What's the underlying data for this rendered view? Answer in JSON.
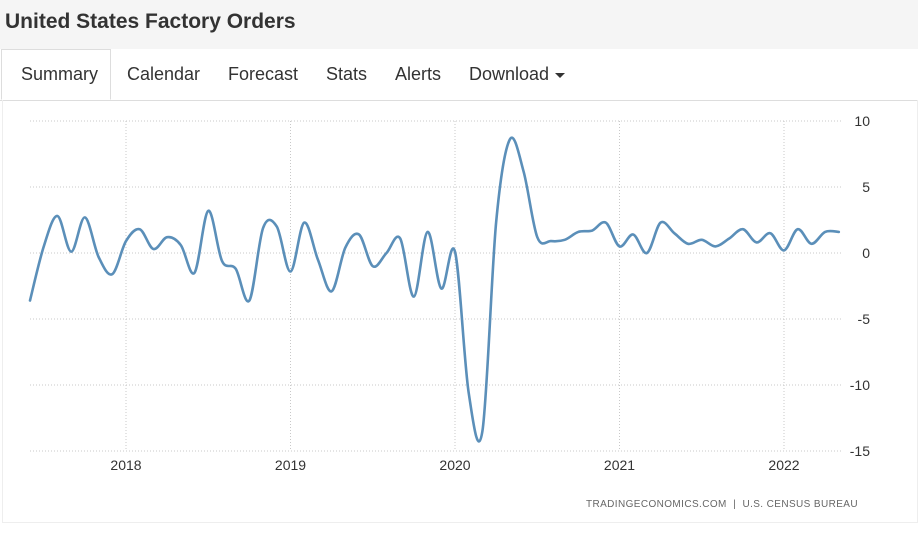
{
  "page": {
    "title": "United States Factory Orders"
  },
  "tabs": [
    {
      "label": "Summary",
      "active": true
    },
    {
      "label": "Calendar",
      "active": false
    },
    {
      "label": "Forecast",
      "active": false
    },
    {
      "label": "Stats",
      "active": false
    },
    {
      "label": "Alerts",
      "active": false
    },
    {
      "label": "Download",
      "active": false
    }
  ],
  "source_credit": "TRADINGECONOMICS.COM  |  U.S. CENSUS BUREAU",
  "colors": {
    "line": "#5b8fb9",
    "grid": "#c8c8c8",
    "text": "#333333"
  },
  "chart_data": {
    "type": "line",
    "title": "",
    "xlabel": "",
    "ylabel": "",
    "x_ticks": [
      "2018",
      "2019",
      "2020",
      "2021",
      "2022"
    ],
    "y_ticks": [
      10,
      5,
      0,
      -5,
      -10,
      -15
    ],
    "ylim": [
      -15,
      10
    ],
    "grid": true,
    "y_axis_side": "right",
    "series": [
      {
        "x": [
          "2017-06",
          "2017-07",
          "2017-08",
          "2017-09",
          "2017-10",
          "2017-11",
          "2017-12",
          "2018-01",
          "2018-02",
          "2018-03",
          "2018-04",
          "2018-05",
          "2018-06",
          "2018-07",
          "2018-08",
          "2018-09",
          "2018-10",
          "2018-11",
          "2018-12",
          "2019-01",
          "2019-02",
          "2019-03",
          "2019-04",
          "2019-05",
          "2019-06",
          "2019-07",
          "2019-08",
          "2019-09",
          "2019-10",
          "2019-11",
          "2019-12",
          "2020-01",
          "2020-02",
          "2020-03",
          "2020-04",
          "2020-05",
          "2020-06",
          "2020-07",
          "2020-08",
          "2020-09",
          "2020-10",
          "2020-11",
          "2020-12",
          "2021-01",
          "2021-02",
          "2021-03",
          "2021-04",
          "2021-05",
          "2021-06",
          "2021-07",
          "2021-08",
          "2021-09",
          "2021-10",
          "2021-11",
          "2021-12",
          "2022-01",
          "2022-02",
          "2022-03",
          "2022-04",
          "2022-05"
        ],
        "values": [
          -3.6,
          0.5,
          2.8,
          0.1,
          2.7,
          -0.3,
          -1.6,
          0.9,
          1.8,
          0.3,
          1.2,
          0.6,
          -1.5,
          3.2,
          -0.6,
          -1.2,
          -3.6,
          1.9,
          2.0,
          -1.4,
          2.3,
          -0.5,
          -2.9,
          0.4,
          1.4,
          -1.0,
          0.0,
          1.1,
          -3.3,
          1.6,
          -2.7,
          0.1,
          -10.6,
          -13.5,
          2.3,
          8.6,
          6.2,
          1.2,
          0.9,
          1.0,
          1.6,
          1.7,
          2.3,
          0.5,
          1.4,
          0.0,
          2.3,
          1.5,
          0.7,
          1.0,
          0.5,
          1.1,
          1.8,
          0.8,
          1.5,
          0.2,
          1.8,
          0.7,
          1.6,
          1.6
        ]
      }
    ]
  }
}
